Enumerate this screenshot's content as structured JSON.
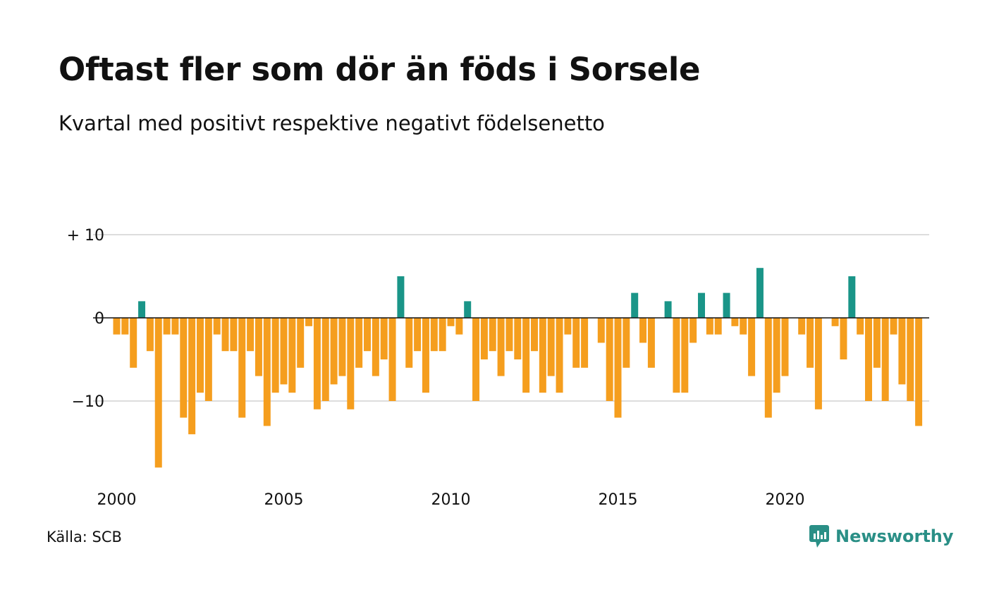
{
  "title": "Oftast fler som dör än föds i Sorsele",
  "subtitle": "Kvartal med positivt respektive negativt födelsenetto",
  "source": "Källa: SCB",
  "brand": {
    "name": "Newsworthy",
    "icon": "newsworthy-logo-icon",
    "color": "#2a8f86"
  },
  "chart_data": {
    "type": "bar",
    "x_tick_labels": [
      "2000",
      "2005",
      "2010",
      "2015",
      "2020"
    ],
    "x_tick_years": [
      2000,
      2005,
      2010,
      2015,
      2020
    ],
    "y_ticks": [
      {
        "value": 10,
        "label": "+ 10"
      },
      {
        "value": 0,
        "label": "0"
      },
      {
        "value": -10,
        "label": "−10"
      }
    ],
    "ylim": [
      -19,
      11
    ],
    "grid": true,
    "start_year": 2000,
    "colors": {
      "positive": "#1a9588",
      "negative": "#f59e1e",
      "grid": "#dddddd",
      "zero_line": "#111111"
    },
    "values": [
      -2,
      -2,
      -6,
      2,
      -4,
      -18,
      -2,
      -2,
      -12,
      -14,
      -9,
      -10,
      -2,
      -4,
      -4,
      -12,
      -4,
      -7,
      -13,
      -9,
      -8,
      -9,
      -6,
      -1,
      -11,
      -10,
      -8,
      -7,
      -11,
      -6,
      -4,
      -7,
      -5,
      -10,
      5,
      -6,
      -4,
      -9,
      -4,
      -4,
      -1,
      -2,
      2,
      -10,
      -5,
      -4,
      -7,
      -4,
      -5,
      -9,
      -4,
      -9,
      -7,
      -9,
      -2,
      -6,
      -6,
      0,
      -3,
      -10,
      -12,
      -6,
      3,
      -3,
      -6,
      0,
      2,
      -9,
      -9,
      -3,
      3,
      -2,
      -2,
      3,
      -1,
      -2,
      -7,
      6,
      -12,
      -9,
      -7,
      0,
      -2,
      -6,
      -11,
      0,
      -1,
      -5,
      5,
      -2,
      -10,
      -6,
      -10,
      -2,
      -8,
      -10,
      -13
    ]
  }
}
